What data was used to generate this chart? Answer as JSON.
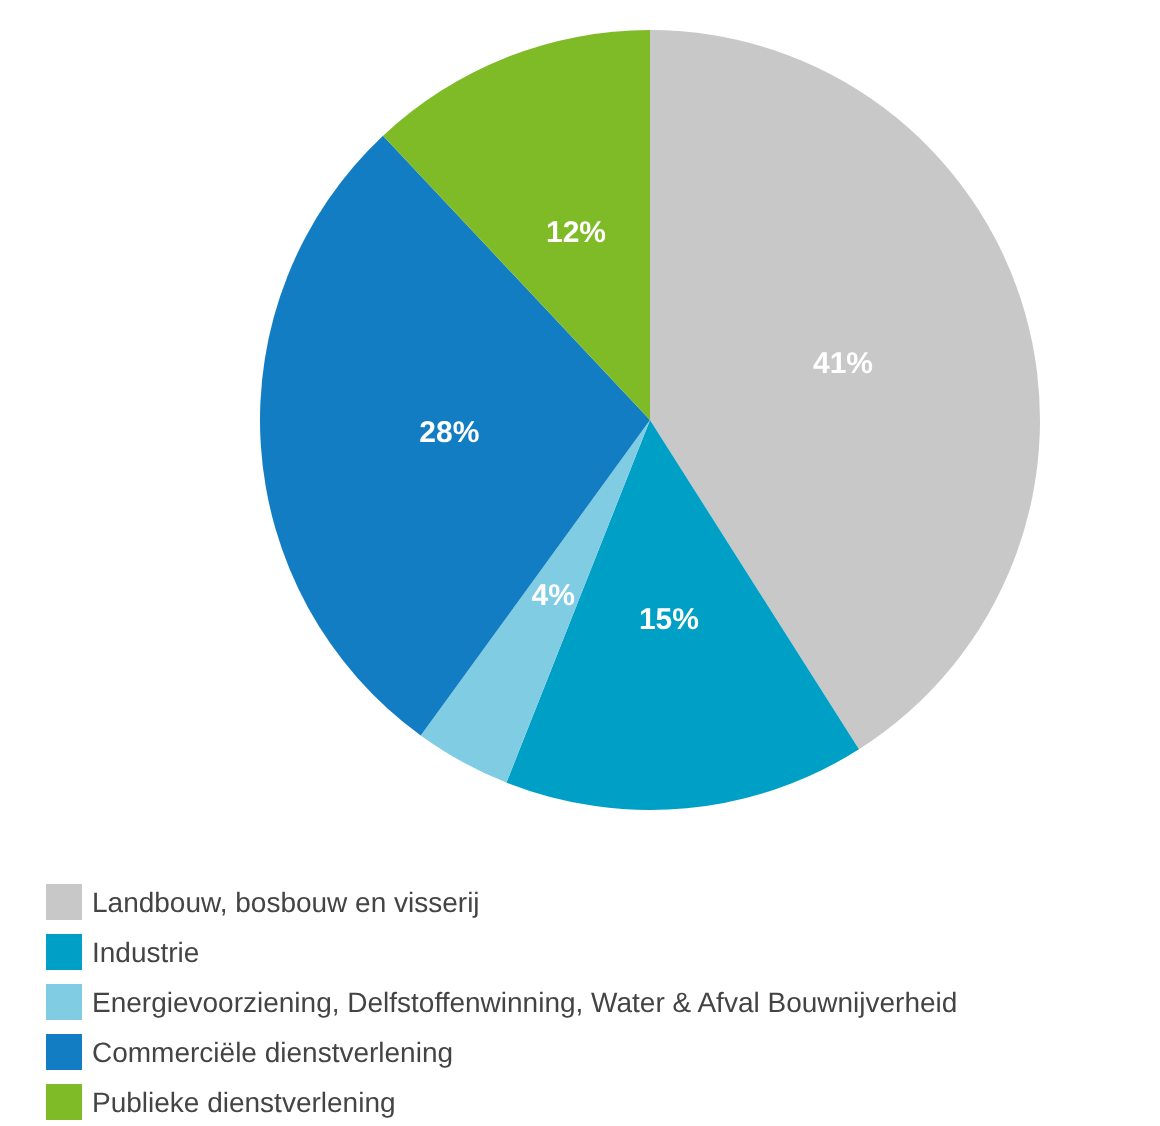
{
  "chart_data": {
    "type": "pie",
    "categories": [
      "Landbouw, bosbouw en visserij",
      "Industrie",
      "Energievoorziening, Delfstoffenwinning, Water & Afval Bouwnijverheid",
      "Commerciële dienstverlening",
      "Publieke dienstverlening"
    ],
    "values": [
      41,
      15,
      4,
      28,
      12
    ],
    "value_labels": [
      "41%",
      "15%",
      "4%",
      "28%",
      "12%"
    ],
    "colors": [
      "#c8c8c8",
      "#00a0c6",
      "#7fcce3",
      "#127dc2",
      "#7fba27"
    ],
    "legend": "bottom left"
  }
}
